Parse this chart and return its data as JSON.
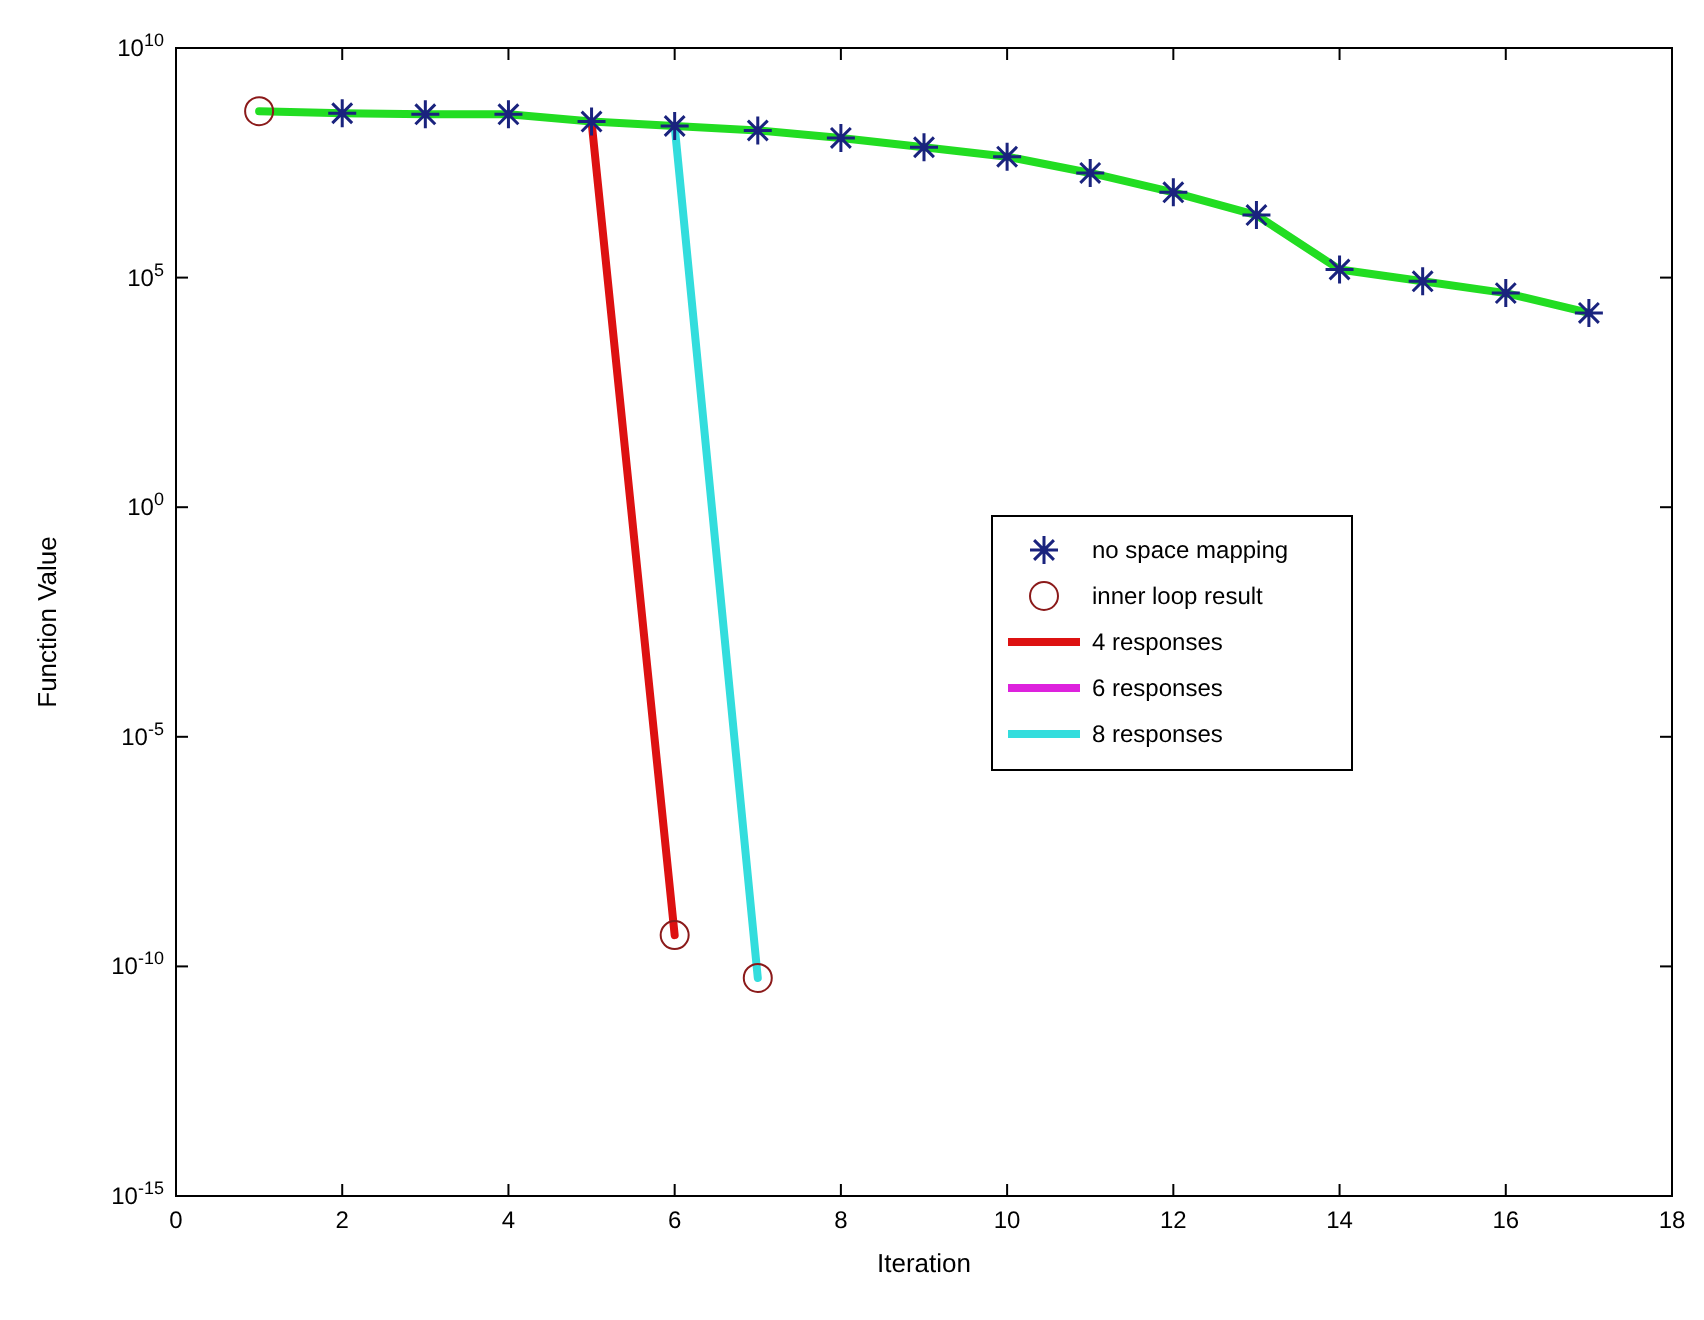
{
  "chart_data": {
    "type": "line",
    "xlabel": "Iteration",
    "ylabel": "Function Value",
    "log": "y",
    "xlim": [
      0,
      18
    ],
    "xticks": [
      0,
      2,
      4,
      6,
      8,
      10,
      12,
      14,
      16,
      18
    ],
    "ylim": [
      1e-15,
      10000000000.0
    ],
    "yticks": [
      {
        "value": 1e-15,
        "label": "10$^{-15}$"
      },
      {
        "value": 1e-10,
        "label": "10$^{-10}$"
      },
      {
        "value": 1e-05,
        "label": "10$^{-5}$"
      },
      {
        "value": 1,
        "label": "10$^{0}$"
      },
      {
        "value": 100000.0,
        "label": "10$^{5}$"
      },
      {
        "value": 10000000000.0,
        "label": "10$^{10}$"
      }
    ],
    "legend": "right",
    "line_style": "solid",
    "series": [
      {
        "type": "scatter",
        "name": "no space mapping",
        "color": "#1a237e",
        "marker": "cross",
        "x": [
          2,
          3,
          4,
          5,
          6,
          7,
          8,
          9,
          10,
          11,
          12,
          13,
          14,
          15,
          16,
          17
        ],
        "values": [
          380000000.0,
          360000000.0,
          360000000.0,
          250000000.0,
          200000000.0,
          160000000.0,
          110000000.0,
          69000000.0,
          43000000.0,
          19000000.0,
          7200000.0,
          2300000.0,
          150000.0,
          83000.0,
          46000.0,
          17000.0
        ]
      },
      {
        "type": "scatter",
        "name": "inner loop result",
        "color": "#8b1a1a",
        "marker": "circle",
        "x": [
          1,
          6,
          7
        ],
        "values": [
          420000000.0,
          4.8e-10,
          5.6e-11
        ]
      },
      {
        "name": "4 responses",
        "color": "#dd1111",
        "x": [
          5,
          6
        ],
        "values": [
          250000000.0,
          4.8e-10
        ]
      },
      {
        "name": "6 responses",
        "color": "#dd22dd"
      },
      {
        "name": "8 responses",
        "color": "#33dddd",
        "x": [
          6,
          7
        ],
        "values": [
          200000000.0,
          5.6e-11
        ]
      },
      {
        "color": "#22dd22",
        "x": [
          1,
          2,
          3,
          4,
          5,
          6,
          7,
          8,
          9,
          10,
          11,
          12,
          13,
          14,
          15,
          16,
          17
        ],
        "values": [
          420000000.0,
          380000000.0,
          360000000.0,
          360000000.0,
          250000000.0,
          200000000.0,
          160000000.0,
          110000000.0,
          69000000.0,
          43000000.0,
          19000000.0,
          7200000.0,
          2300000.0,
          150000.0,
          83000.0,
          46000.0,
          17000.0
        ]
      }
    ]
  }
}
